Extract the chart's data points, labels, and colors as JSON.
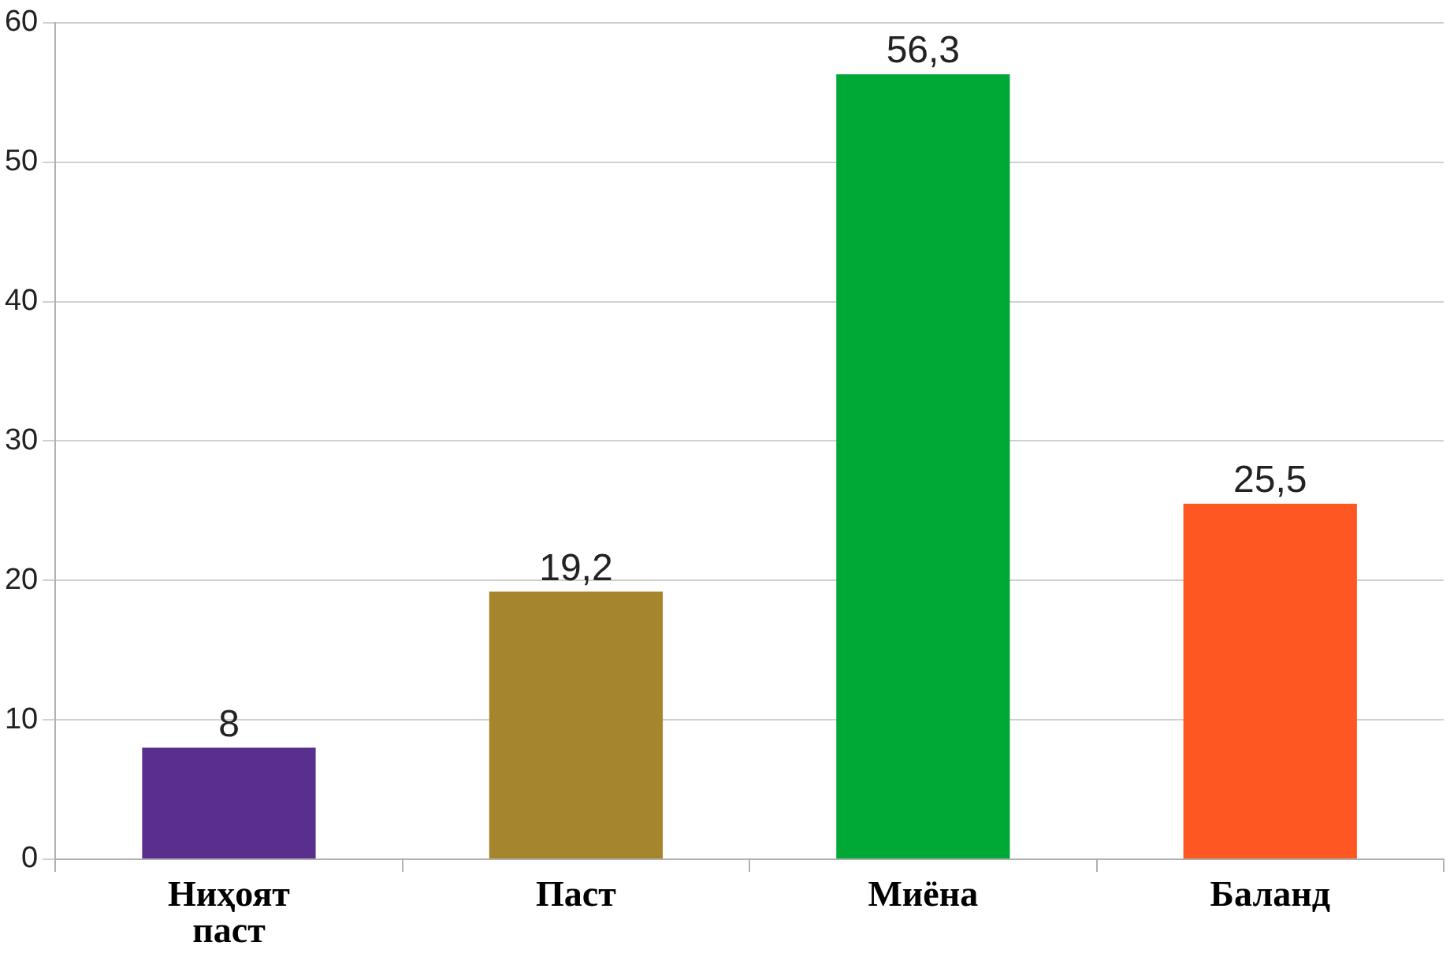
{
  "chart_data": {
    "type": "bar",
    "categories": [
      "Ниҳоят паст",
      "Паст",
      "Миёна",
      "Баланд"
    ],
    "values": [
      8,
      19.2,
      56.3,
      25.5
    ],
    "colors": [
      "#582f8c",
      "#a5862c",
      "#00a835",
      "#ff5722"
    ],
    "value_labels": [
      "8",
      "19,2",
      "56,3",
      "25,5"
    ],
    "ylim": [
      0,
      60
    ],
    "yticks": [
      0,
      10,
      20,
      30,
      40,
      50,
      60
    ],
    "grid": "y",
    "legend": false
  }
}
